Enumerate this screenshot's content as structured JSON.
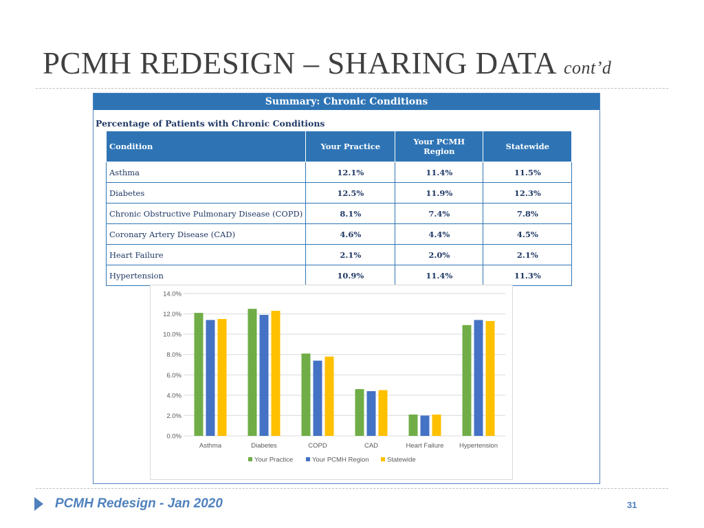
{
  "slide": {
    "title": "PCMH REDESIGN – SHARING DATA",
    "title_suffix": "cont’d",
    "footer": "PCMH Redesign - Jan 2020",
    "page_number": "31"
  },
  "panel": {
    "header": "Summary: Chronic Conditions",
    "section_label": "Percentage of Patients with Chronic Conditions"
  },
  "table": {
    "columns": [
      "Condition",
      "Your Practice",
      "Your PCMH Region",
      "Statewide"
    ],
    "rows": [
      [
        "Asthma",
        "12.1%",
        "11.4%",
        "11.5%"
      ],
      [
        "Diabetes",
        "12.5%",
        "11.9%",
        "12.3%"
      ],
      [
        "Chronic Obstructive Pulmonary Disease (COPD)",
        "8.1%",
        "7.4%",
        "7.8%"
      ],
      [
        "Coronary Artery Disease (CAD)",
        "4.6%",
        "4.4%",
        "4.5%"
      ],
      [
        "Heart Failure",
        "2.1%",
        "2.0%",
        "2.1%"
      ],
      [
        "Hypertension",
        "10.9%",
        "11.4%",
        "11.3%"
      ]
    ]
  },
  "chart_data": {
    "type": "bar",
    "title": "",
    "xlabel": "",
    "ylabel": "",
    "categories": [
      "Asthma",
      "Diabetes",
      "COPD",
      "CAD",
      "Heart Failure",
      "Hypertension"
    ],
    "series": [
      {
        "name": "Your Practice",
        "color": "#70ad47",
        "values": [
          12.1,
          12.5,
          8.1,
          4.6,
          2.1,
          10.9
        ]
      },
      {
        "name": "Your PCMH Region",
        "color": "#4472c4",
        "values": [
          11.4,
          11.9,
          7.4,
          4.4,
          2.0,
          11.4
        ]
      },
      {
        "name": "Statewide",
        "color": "#ffc000",
        "values": [
          11.5,
          12.3,
          7.8,
          4.5,
          2.1,
          11.3
        ]
      }
    ],
    "ylim": [
      0,
      14
    ],
    "yticks": [
      "0.0%",
      "2.0%",
      "4.0%",
      "6.0%",
      "8.0%",
      "10.0%",
      "12.0%",
      "14.0%"
    ],
    "grid": true,
    "legend_position": "bottom"
  },
  "colors": {
    "header_blue": "#2e74b5",
    "footer_blue": "#4f81bd"
  }
}
